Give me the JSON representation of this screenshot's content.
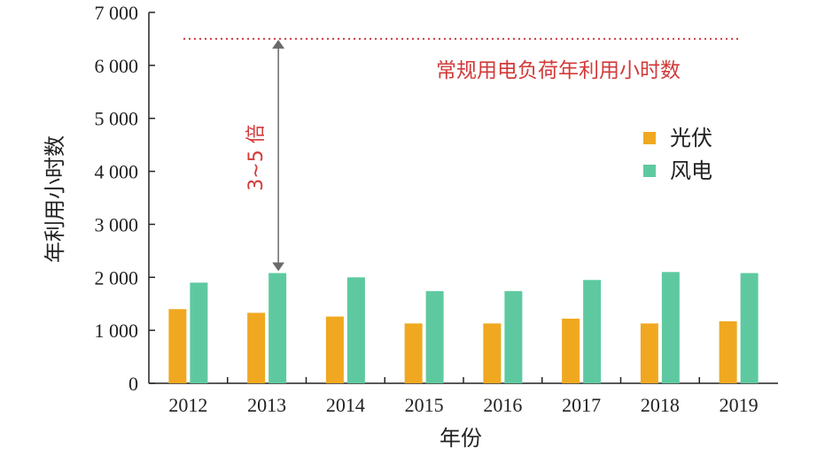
{
  "chart_data": {
    "type": "bar",
    "categories": [
      "2012",
      "2013",
      "2014",
      "2015",
      "2016",
      "2017",
      "2018",
      "2019"
    ],
    "series": [
      {
        "name": "光伏",
        "color": "#f0a820",
        "values": [
          1400,
          1330,
          1260,
          1130,
          1130,
          1220,
          1130,
          1170
        ]
      },
      {
        "name": "风电",
        "color": "#5ec9a0",
        "values": [
          1900,
          2080,
          2000,
          1740,
          1740,
          1950,
          2100,
          2080
        ]
      }
    ],
    "title": "",
    "xlabel": "年份",
    "ylabel": "年利用小时数",
    "ylim": [
      0,
      7000
    ],
    "yticks": [
      0,
      1000,
      2000,
      3000,
      4000,
      5000,
      6000,
      7000
    ],
    "ytick_labels": [
      "0",
      "1 000",
      "2 000",
      "3 000",
      "4 000",
      "5 000",
      "6 000",
      "7 000"
    ],
    "grid": false,
    "legend_position": "right",
    "reference_line": {
      "label": "常规用电负荷年利用小时数",
      "value": 6500,
      "color": "#d23a3a",
      "style": "dotted"
    },
    "annotation": {
      "label": "3~5 倍",
      "from_value": 2100,
      "to_value": 6500,
      "category": "2013",
      "color": "#d23a3a"
    }
  }
}
